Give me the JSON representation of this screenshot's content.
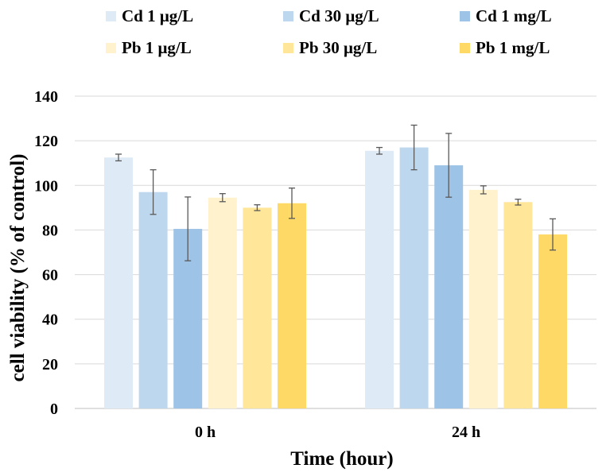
{
  "chart_data": {
    "type": "bar",
    "title": "",
    "xlabel": "Time (hour)",
    "ylabel": "cell viability (% of control)",
    "ylim": [
      0,
      140
    ],
    "yticks": [
      0,
      20,
      40,
      60,
      80,
      100,
      120,
      140
    ],
    "grid": true,
    "legend_position": "top",
    "categories": [
      "0 h",
      "24 h"
    ],
    "series": [
      {
        "name": "Cd 1 μg/L",
        "color": "#DEEBF7",
        "values": [
          112.5,
          115.5
        ],
        "errors": [
          1.5,
          1.5
        ]
      },
      {
        "name": "Cd 30 μg/L",
        "color": "#BDD7EE",
        "values": [
          97,
          117
        ],
        "errors": [
          10,
          10
        ]
      },
      {
        "name": "Cd 1 mg/L",
        "color": "#9DC3E6",
        "values": [
          80.5,
          109
        ],
        "errors": [
          14.3,
          14.3
        ]
      },
      {
        "name": "Pb 1 μg/L",
        "color": "#FFF2CC",
        "values": [
          94.5,
          98
        ],
        "errors": [
          1.8,
          1.8
        ]
      },
      {
        "name": "Pb 30 μg/L",
        "color": "#FFE699",
        "values": [
          90,
          92.5
        ],
        "errors": [
          1.3,
          1.3
        ]
      },
      {
        "name": "Pb 1 mg/L",
        "color": "#FFD966",
        "values": [
          92,
          78
        ],
        "errors": [
          6.8,
          7
        ]
      }
    ]
  }
}
